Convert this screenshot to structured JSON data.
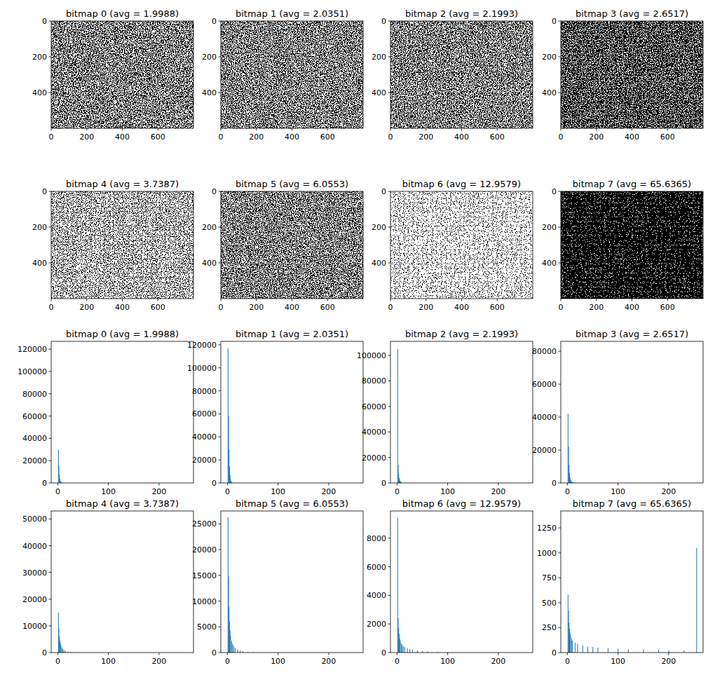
{
  "chart_data": [
    {
      "type": "image",
      "title": "bitmap 0 (avg = 1.9988)",
      "xlim": [
        0,
        800
      ],
      "ylim": [
        600,
        0
      ],
      "xticks": [
        0,
        200,
        400,
        600
      ],
      "yticks": [
        0,
        200,
        400
      ]
    },
    {
      "type": "image",
      "title": "bitmap 1 (avg = 2.0351)",
      "xlim": [
        0,
        800
      ],
      "ylim": [
        600,
        0
      ],
      "xticks": [
        0,
        200,
        400,
        600
      ],
      "yticks": [
        0,
        200,
        400
      ]
    },
    {
      "type": "image",
      "title": "bitmap 2 (avg = 2.1993)",
      "xlim": [
        0,
        800
      ],
      "ylim": [
        600,
        0
      ],
      "xticks": [
        0,
        200,
        400,
        600
      ],
      "yticks": [
        0,
        200,
        400
      ]
    },
    {
      "type": "image",
      "title": "bitmap 3 (avg = 2.6517)",
      "xlim": [
        0,
        800
      ],
      "ylim": [
        600,
        0
      ],
      "xticks": [
        0,
        200,
        400,
        600
      ],
      "yticks": [
        0,
        200,
        400
      ]
    },
    {
      "type": "image",
      "title": "bitmap 4 (avg = 3.7387)",
      "xlim": [
        0,
        800
      ],
      "ylim": [
        600,
        0
      ],
      "xticks": [
        0,
        200,
        400,
        600
      ],
      "yticks": [
        0,
        200,
        400
      ]
    },
    {
      "type": "image",
      "title": "bitmap 5 (avg = 6.0553)",
      "xlim": [
        0,
        800
      ],
      "ylim": [
        600,
        0
      ],
      "xticks": [
        0,
        200,
        400,
        600
      ],
      "yticks": [
        0,
        200,
        400
      ]
    },
    {
      "type": "image",
      "title": "bitmap 6 (avg = 12.9579)",
      "xlim": [
        0,
        800
      ],
      "ylim": [
        600,
        0
      ],
      "xticks": [
        0,
        200,
        400,
        600
      ],
      "yticks": [
        0,
        200,
        400
      ]
    },
    {
      "type": "image",
      "title": "bitmap 7 (avg = 65.6365)",
      "xlim": [
        0,
        800
      ],
      "ylim": [
        600,
        0
      ],
      "xticks": [
        0,
        200,
        400,
        600
      ],
      "yticks": [
        0,
        200,
        400
      ]
    },
    {
      "type": "bar",
      "title": "bitmap 0 (avg = 1.9988)",
      "color": "#1f77b4",
      "x": [
        1,
        2,
        3,
        4,
        5,
        6,
        7,
        8
      ],
      "values": [
        30000,
        15000,
        7500,
        3700,
        1900,
        900,
        450,
        220
      ],
      "xlim": [
        -13,
        268
      ],
      "ylim": [
        0,
        127000
      ],
      "xticks": [
        0,
        100,
        200
      ],
      "yticks": [
        0,
        20000,
        40000,
        60000,
        80000,
        100000,
        120000
      ]
    },
    {
      "type": "bar",
      "title": "bitmap 1 (avg = 2.0351)",
      "color": "#1f77b4",
      "x": [
        1,
        2,
        3,
        4,
        5,
        6,
        7,
        8,
        9
      ],
      "values": [
        117000,
        58000,
        29000,
        14500,
        7000,
        3500,
        1800,
        900,
        450
      ],
      "xlim": [
        -13,
        268
      ],
      "ylim": [
        0,
        123000
      ],
      "xticks": [
        0,
        100,
        200
      ],
      "yticks": [
        0,
        20000,
        40000,
        60000,
        80000,
        100000,
        120000
      ]
    },
    {
      "type": "bar",
      "title": "bitmap 2 (avg = 2.1993)",
      "color": "#1f77b4",
      "x": [
        1,
        2,
        3,
        4,
        5,
        6,
        7,
        8
      ],
      "values": [
        105000,
        14000,
        7000,
        4000,
        2500,
        1500,
        900,
        500
      ],
      "xlim": [
        -13,
        268
      ],
      "ylim": [
        0,
        111000
      ],
      "xticks": [
        0,
        100,
        200
      ],
      "yticks": [
        0,
        20000,
        40000,
        60000,
        80000,
        100000
      ]
    },
    {
      "type": "bar",
      "title": "bitmap 3 (avg = 2.6517)",
      "color": "#1f77b4",
      "x": [
        1,
        2,
        3,
        4,
        5,
        6,
        7,
        8,
        10,
        12,
        15,
        20
      ],
      "values": [
        42000,
        22000,
        11000,
        6000,
        3500,
        2200,
        1500,
        1000,
        600,
        400,
        250,
        120
      ],
      "xlim": [
        -13,
        268
      ],
      "ylim": [
        0,
        86000
      ],
      "xticks": [
        0,
        100,
        200
      ],
      "yticks": [
        0,
        20000,
        40000,
        60000,
        80000
      ]
    },
    {
      "type": "bar",
      "title": "bitmap 4 (avg = 3.7387)",
      "color": "#1f77b4",
      "x": [
        1,
        2,
        3,
        4,
        5,
        6,
        8,
        10,
        12,
        15,
        20,
        25,
        30,
        40
      ],
      "values": [
        15000,
        9000,
        6000,
        4500,
        3500,
        2700,
        1800,
        1300,
        900,
        600,
        350,
        200,
        120,
        60
      ],
      "xlim": [
        -13,
        268
      ],
      "ylim": [
        0,
        53000
      ],
      "xticks": [
        0,
        100,
        200
      ],
      "yticks": [
        0,
        10000,
        20000,
        30000,
        40000,
        50000
      ]
    },
    {
      "type": "bar",
      "title": "bitmap 5 (avg = 6.0553)",
      "color": "#1f77b4",
      "x": [
        1,
        2,
        3,
        4,
        5,
        6,
        8,
        10,
        12,
        15,
        20,
        25,
        30,
        40,
        50
      ],
      "values": [
        26300,
        14800,
        8800,
        6000,
        4300,
        3300,
        2300,
        1700,
        1300,
        900,
        600,
        400,
        280,
        150,
        80
      ],
      "xlim": [
        -13,
        268
      ],
      "ylim": [
        0,
        27500
      ],
      "xticks": [
        0,
        100,
        200
      ],
      "yticks": [
        0,
        5000,
        10000,
        15000,
        20000,
        25000
      ]
    },
    {
      "type": "bar",
      "title": "bitmap 6 (avg = 12.9579)",
      "color": "#1f77b4",
      "x": [
        1,
        2,
        3,
        4,
        5,
        6,
        8,
        10,
        12,
        15,
        20,
        25,
        30,
        40,
        50,
        60,
        80,
        100,
        150,
        200
      ],
      "values": [
        9400,
        2400,
        1700,
        1300,
        1000,
        850,
        650,
        550,
        450,
        380,
        300,
        250,
        200,
        150,
        110,
        80,
        50,
        30,
        15,
        8
      ],
      "xlim": [
        -13,
        268
      ],
      "ylim": [
        0,
        9900
      ],
      "xticks": [
        0,
        100,
        200
      ],
      "yticks": [
        0,
        2000,
        4000,
        6000,
        8000
      ]
    },
    {
      "type": "bar",
      "title": "bitmap 7 (avg = 65.6365)",
      "color": "#1f77b4",
      "x": [
        1,
        2,
        3,
        4,
        5,
        6,
        8,
        10,
        15,
        20,
        30,
        40,
        50,
        60,
        80,
        100,
        120,
        150,
        180,
        200,
        230,
        255
      ],
      "values": [
        580,
        420,
        300,
        240,
        200,
        170,
        140,
        120,
        100,
        85,
        70,
        60,
        55,
        50,
        45,
        40,
        35,
        30,
        28,
        25,
        22,
        1050
      ],
      "xlim": [
        -13,
        268
      ],
      "ylim": [
        0,
        1420
      ],
      "xticks": [
        0,
        100,
        200
      ],
      "yticks": [
        0,
        250,
        500,
        750,
        1000,
        1250
      ]
    }
  ]
}
